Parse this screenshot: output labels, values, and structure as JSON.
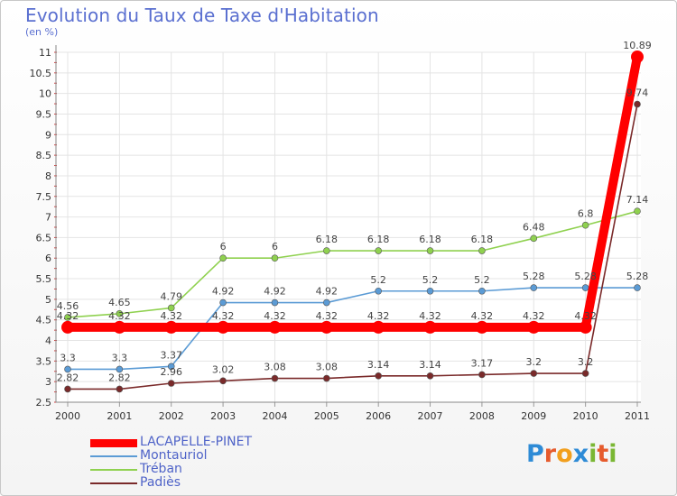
{
  "header": {
    "title": "Evolution du Taux de Taxe d'Habitation",
    "subtitle": "(en %)"
  },
  "brand": {
    "letters": [
      "P",
      "r",
      "o",
      "x",
      "i",
      "t",
      "i"
    ],
    "colors": [
      "#2e8bd6",
      "#e65b2d",
      "#f29f1d",
      "#2e8bd6",
      "#7ab733",
      "#e65b2d",
      "#7ab733"
    ]
  },
  "chart_data": {
    "type": "line",
    "title": "Evolution du Taux de Taxe d'Habitation",
    "ylabel": "(en %)",
    "x": [
      "2000",
      "2001",
      "2002",
      "2003",
      "2004",
      "2005",
      "2006",
      "2007",
      "2008",
      "2009",
      "2010",
      "2011"
    ],
    "ylim": [
      2.5,
      11
    ],
    "yticks": [
      "2.5",
      "3",
      "3.5",
      "4",
      "4.5",
      "5",
      "5.5",
      "6",
      "6.5",
      "7",
      "7.5",
      "8",
      "8.5",
      "9",
      "9.5",
      "10",
      "10.5",
      "11"
    ],
    "grid": true,
    "legend_position": "bottom-left",
    "series": [
      {
        "name": "LACAPELLE-PINET",
        "color": "#ff0000",
        "emphasis": true,
        "values": [
          4.32,
          4.32,
          4.32,
          4.32,
          4.32,
          4.32,
          4.32,
          4.32,
          4.32,
          4.32,
          4.32,
          10.89
        ],
        "labels": [
          "4.32",
          "4.32",
          "4.32",
          "4.32",
          "4.32",
          "4.32",
          "4.32",
          "4.32",
          "4.32",
          "4.32",
          "4.32",
          "10.89"
        ]
      },
      {
        "name": "Montauriol",
        "color": "#5b9bd5",
        "values": [
          3.3,
          3.3,
          3.37,
          4.92,
          4.92,
          4.92,
          5.2,
          5.2,
          5.2,
          5.28,
          5.28,
          5.28
        ],
        "labels": [
          "3.3",
          "3.3",
          "3.37",
          "4.92",
          "4.92",
          "4.92",
          "5.2",
          "5.2",
          "5.2",
          "5.28",
          "5.28",
          "5.28"
        ]
      },
      {
        "name": "Tréban",
        "color": "#8fd14f",
        "values": [
          4.56,
          4.65,
          4.79,
          6,
          6,
          6.18,
          6.18,
          6.18,
          6.18,
          6.48,
          6.8,
          7.14
        ],
        "labels": [
          "4.56",
          "4.65",
          "4.79",
          "6",
          "6",
          "6.18",
          "6.18",
          "6.18",
          "6.18",
          "6.48",
          "6.8",
          "7.14"
        ]
      },
      {
        "name": "Padiès",
        "color": "#7a2a2a",
        "values": [
          2.82,
          2.82,
          2.96,
          3.02,
          3.08,
          3.08,
          3.14,
          3.14,
          3.17,
          3.2,
          3.2,
          9.74
        ],
        "labels": [
          "2.82",
          "2.82",
          "2.96",
          "3.02",
          "3.08",
          "3.08",
          "3.14",
          "3.14",
          "3.17",
          "3.2",
          "3.2",
          "9.74"
        ]
      }
    ]
  }
}
